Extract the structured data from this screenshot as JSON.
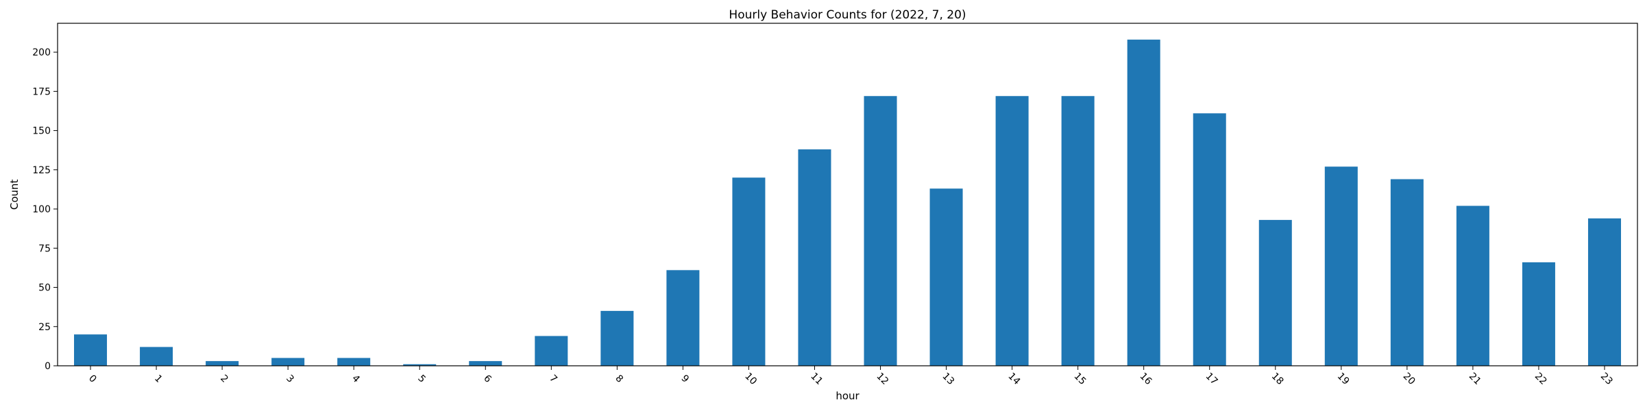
{
  "chart_data": {
    "type": "bar",
    "title": "Hourly Behavior Counts for (2022, 7, 20)",
    "xlabel": "hour",
    "ylabel": "Count",
    "categories": [
      "0",
      "1",
      "2",
      "3",
      "4",
      "5",
      "6",
      "7",
      "8",
      "9",
      "10",
      "11",
      "12",
      "13",
      "14",
      "15",
      "16",
      "17",
      "18",
      "19",
      "20",
      "21",
      "22",
      "23"
    ],
    "values": [
      20,
      12,
      3,
      5,
      5,
      1,
      3,
      19,
      35,
      61,
      120,
      138,
      172,
      113,
      172,
      172,
      208,
      161,
      93,
      127,
      119,
      102,
      66,
      94
    ],
    "ylim": [
      0,
      218.4
    ],
    "yticks": [
      0,
      25,
      50,
      75,
      100,
      125,
      150,
      175,
      200
    ],
    "xtick_rotation": 45,
    "bar_color": "#1f77b4",
    "grid": false,
    "legend": "none"
  }
}
